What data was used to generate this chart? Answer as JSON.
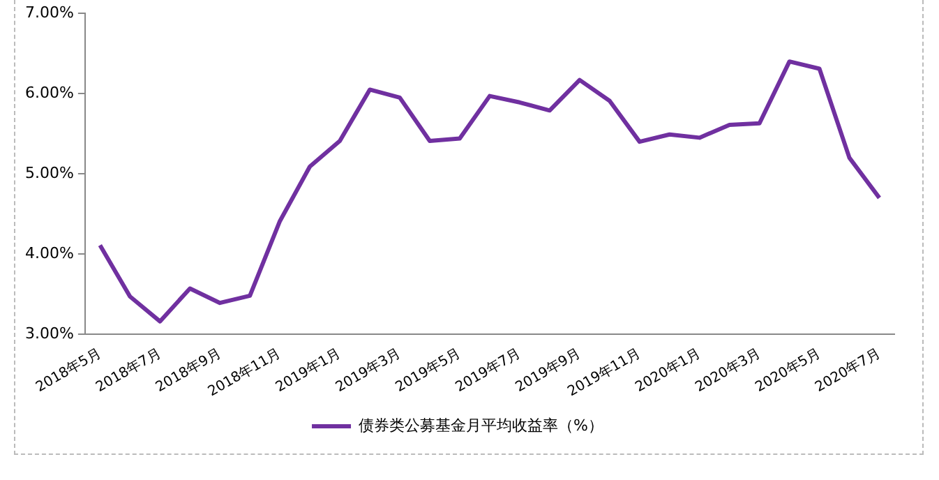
{
  "chart_data": {
    "type": "line",
    "categories": [
      "2018年5月",
      null,
      "2018年7月",
      null,
      "2018年9月",
      null,
      "2018年11月",
      null,
      "2019年1月",
      null,
      "2019年3月",
      null,
      "2019年5月",
      null,
      "2019年7月",
      null,
      "2019年9月",
      null,
      "2019年11月",
      null,
      "2020年1月",
      null,
      "2020年3月",
      null,
      "2020年5月",
      null,
      "2020年7月"
    ],
    "series": [
      {
        "name": "债券类公募基金月平均收益率（%）",
        "color": "#7030a0",
        "values": [
          4.11,
          3.47,
          3.16,
          3.57,
          3.39,
          3.48,
          4.41,
          5.09,
          5.41,
          6.05,
          5.95,
          5.41,
          5.44,
          5.97,
          5.89,
          5.79,
          6.17,
          5.91,
          5.4,
          5.49,
          5.45,
          5.61,
          5.63,
          6.4,
          6.31,
          5.2,
          4.7
        ]
      }
    ],
    "ylim": [
      3,
      7
    ],
    "yticks": [
      {
        "value": 3,
        "label": "3.00%"
      },
      {
        "value": 4,
        "label": "4.00%"
      },
      {
        "value": 5,
        "label": "5.00%"
      },
      {
        "value": 6,
        "label": "6.00%"
      },
      {
        "value": 7,
        "label": "7.00%"
      }
    ],
    "grid": false,
    "legend": "bottom",
    "marker": "none",
    "line_style": "solid"
  }
}
